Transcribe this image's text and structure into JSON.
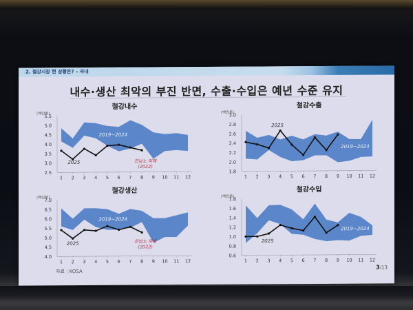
{
  "slide": {
    "breadcrumb": "2. 철강시장 현 상황은? – 국내",
    "title": "내수·생산 최악의 부진 반면, 수출·수입은 예년 수준 유지",
    "source": "자료 : KOSA",
    "page_current": "3",
    "page_total": "/13"
  },
  "colors": {
    "band": "#5b86c9",
    "line": "#111111",
    "annotation": "#b03a4a",
    "band_label": "#e8eef8",
    "slide_bg": "#dcdcec"
  },
  "chart_data": [
    {
      "id": "domestic",
      "type": "area",
      "title": "철강내수",
      "unit": "(백만톤)",
      "x": [
        1,
        2,
        3,
        4,
        5,
        6,
        7,
        8,
        9,
        10,
        11,
        12
      ],
      "xlabel": "",
      "ylabel": "(백만톤)",
      "ylim": [
        2.5,
        5.5
      ],
      "yticks": [
        2.5,
        3.0,
        3.5,
        4.0,
        4.5,
        5.0,
        5.5
      ],
      "ytick_labels": [
        "2.5",
        "3.0",
        "3.5",
        "4.0",
        "4.5",
        "5.0",
        "5.5"
      ],
      "series": [
        {
          "name": "2019~2024 max",
          "values": [
            4.85,
            4.3,
            5.15,
            5.1,
            4.95,
            4.9,
            5.25,
            5.0,
            4.6,
            4.5,
            4.55,
            4.45
          ]
        },
        {
          "name": "2019~2024 min",
          "values": [
            4.15,
            3.8,
            4.45,
            4.3,
            3.9,
            3.6,
            3.75,
            4.0,
            3.2,
            3.6,
            3.65,
            3.6
          ]
        },
        {
          "name": "2025",
          "values": [
            3.65,
            3.2,
            3.75,
            3.4,
            3.9,
            3.95,
            3.8,
            3.65
          ]
        }
      ],
      "band_label": "2019~2024",
      "band_label_pos": [
        5.5,
        4.4
      ],
      "line_label": "2025",
      "line_label_pos": [
        2.1,
        2.95
      ],
      "annotation": [
        "힌남노 피해",
        "(2022)"
      ],
      "annotation_pos": [
        8.3,
        3.0
      ]
    },
    {
      "id": "exports",
      "type": "area",
      "title": "철강수출",
      "unit": "(백만톤)",
      "x": [
        1,
        2,
        3,
        4,
        5,
        6,
        7,
        8,
        9,
        10,
        11,
        12
      ],
      "xlabel": "",
      "ylabel": "(백만톤)",
      "ylim": [
        1.8,
        3.0
      ],
      "yticks": [
        1.8,
        2.0,
        2.2,
        2.4,
        2.6,
        2.8,
        3.0
      ],
      "ytick_labels": [
        "1.8",
        "2.0",
        "2.2",
        "2.4",
        "2.6",
        "2.8",
        "3.0"
      ],
      "series": [
        {
          "name": "2019~2024 max",
          "values": [
            2.66,
            2.51,
            2.57,
            2.47,
            2.55,
            2.47,
            2.58,
            2.55,
            2.63,
            2.47,
            2.47,
            2.88
          ]
        },
        {
          "name": "2019~2024 min",
          "values": [
            2.07,
            2.05,
            2.25,
            2.1,
            2.01,
            2.03,
            2.13,
            2.13,
            1.98,
            2.01,
            2.09,
            2.1
          ]
        },
        {
          "name": "2025",
          "values": [
            2.42,
            2.37,
            2.29,
            2.66,
            2.36,
            2.14,
            2.51,
            2.24,
            2.57
          ]
        }
      ],
      "band_label": "2019~2024",
      "band_label_pos": [
        10.5,
        2.28
      ],
      "line_label": "2025",
      "line_label_pos": [
        3.75,
        2.74
      ],
      "annotation": [],
      "annotation_pos": null
    },
    {
      "id": "production",
      "type": "area",
      "title": "철강생산",
      "unit": "(백만톤)",
      "x": [
        1,
        2,
        3,
        4,
        5,
        6,
        7,
        8,
        9,
        10,
        11,
        12
      ],
      "xlabel": "",
      "ylabel": "(백만톤)",
      "ylim": [
        4.0,
        7.0
      ],
      "yticks": [
        4.0,
        4.5,
        5.0,
        5.5,
        6.0,
        6.5,
        7.0
      ],
      "ytick_labels": [
        "4.0",
        "4.5",
        "5.0",
        "5.5",
        "6.0",
        "6.5",
        "7.0"
      ],
      "series": [
        {
          "name": "2019~2024 max",
          "values": [
            6.55,
            6.0,
            6.55,
            6.55,
            6.5,
            6.25,
            6.5,
            6.4,
            6.0,
            6.0,
            6.15,
            6.3
          ]
        },
        {
          "name": "2019~2024 min",
          "values": [
            5.6,
            5.4,
            5.95,
            5.55,
            5.4,
            5.4,
            5.5,
            5.8,
            4.7,
            5.0,
            5.0,
            5.6
          ]
        },
        {
          "name": "2025",
          "values": [
            5.4,
            4.95,
            5.4,
            5.35,
            5.6,
            5.4,
            5.55,
            5.25
          ]
        }
      ],
      "band_label": "2019~2024",
      "band_label_pos": [
        5.5,
        5.88
      ],
      "line_label": "2025",
      "line_label_pos": [
        2.0,
        4.6
      ],
      "annotation": [
        "힌남노 피해",
        "(2022)"
      ],
      "annotation_pos": [
        8.3,
        4.7
      ]
    },
    {
      "id": "imports",
      "type": "area",
      "title": "철강수입",
      "unit": "(백만톤)",
      "x": [
        1,
        2,
        3,
        4,
        5,
        6,
        7,
        8,
        9,
        10,
        11,
        12
      ],
      "xlabel": "",
      "ylabel": "(백만톤)",
      "ylim": [
        0.6,
        1.8
      ],
      "yticks": [
        0.6,
        0.8,
        1.0,
        1.2,
        1.4,
        1.6,
        1.8
      ],
      "ytick_labels": [
        "0.6",
        "0.8",
        "1.0",
        "1.2",
        "1.4",
        "1.6",
        "1.8"
      ],
      "series": [
        {
          "name": "2019~2024 max",
          "values": [
            1.66,
            1.39,
            1.66,
            1.67,
            1.57,
            1.36,
            1.69,
            1.35,
            1.29,
            1.49,
            1.4,
            1.22
          ]
        },
        {
          "name": "2019~2024 min",
          "values": [
            0.86,
            1.07,
            1.34,
            1.26,
            1.05,
            1.03,
            0.94,
            0.89,
            0.91,
            0.9,
            1.0,
            1.02
          ]
        },
        {
          "name": "2025",
          "values": [
            1.0,
            1.0,
            1.06,
            1.24,
            1.17,
            1.12,
            1.41,
            1.07,
            1.23
          ]
        }
      ],
      "band_label": "2019~2024",
      "band_label_pos": [
        10.5,
        1.12
      ],
      "line_label": "2025",
      "line_label_pos": [
        2.9,
        0.87
      ],
      "annotation": [],
      "annotation_pos": null
    }
  ]
}
